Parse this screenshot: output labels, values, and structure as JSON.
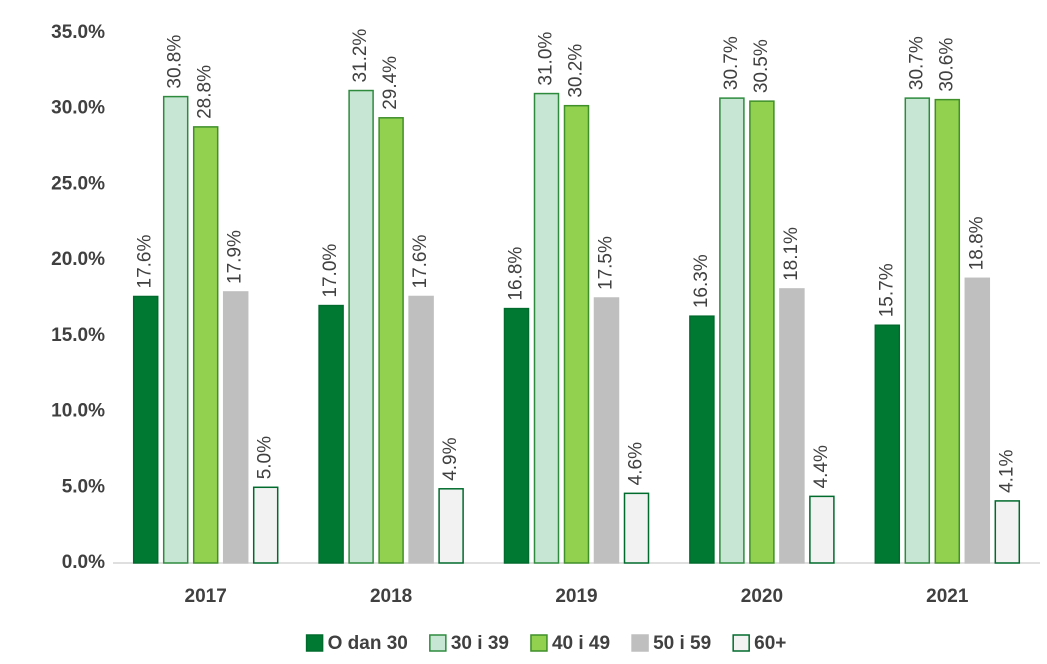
{
  "chart_data": {
    "type": "bar",
    "categories": [
      "2017",
      "2018",
      "2019",
      "2020",
      "2021"
    ],
    "series": [
      {
        "name": "O dan 30",
        "color": "#007a33",
        "edgecolor": "#006b2d",
        "values": [
          17.6,
          17.0,
          16.8,
          16.3,
          15.7
        ],
        "value_labels": [
          "17.6%",
          "17.0%",
          "16.8%",
          "16.3%",
          "15.7%"
        ]
      },
      {
        "name": "30 i 39",
        "color": "#c8e6d4",
        "edgecolor": "#2e8b3e",
        "values": [
          30.8,
          31.2,
          31.0,
          30.7,
          30.7
        ],
        "value_labels": [
          "30.8%",
          "31.2%",
          "31.0%",
          "30.7%",
          "30.7%"
        ]
      },
      {
        "name": "40 i 49",
        "color": "#92d050",
        "edgecolor": "#3f8f2a",
        "values": [
          28.8,
          29.4,
          30.2,
          30.5,
          30.6
        ],
        "value_labels": [
          "28.8%",
          "29.4%",
          "30.2%",
          "30.5%",
          "30.6%"
        ]
      },
      {
        "name": "50 i 59",
        "color": "#bfbfbf",
        "edgecolor": "#bfbfbf",
        "values": [
          17.9,
          17.6,
          17.5,
          18.1,
          18.8
        ],
        "value_labels": [
          "17.9%",
          "17.6%",
          "17.5%",
          "18.1%",
          "18.8%"
        ]
      },
      {
        "name": "60+",
        "color": "#f2f2f2",
        "edgecolor": "#006b2d",
        "values": [
          5.0,
          4.9,
          4.6,
          4.4,
          4.1
        ],
        "value_labels": [
          "5.0%",
          "4.9%",
          "4.6%",
          "4.4%",
          "4.1%"
        ]
      }
    ],
    "ylim": [
      0,
      35
    ],
    "yticks": [
      {
        "value": 0,
        "label": "0.0%"
      },
      {
        "value": 5,
        "label": "5.0%"
      },
      {
        "value": 10,
        "label": "10.0%"
      },
      {
        "value": 15,
        "label": "15.0%"
      },
      {
        "value": 20,
        "label": "20.0%"
      },
      {
        "value": 25,
        "label": "25.0%"
      },
      {
        "value": 30,
        "label": "30.0%"
      },
      {
        "value": 35,
        "label": "35.0%"
      }
    ],
    "grid": false,
    "legend": "bottom"
  }
}
